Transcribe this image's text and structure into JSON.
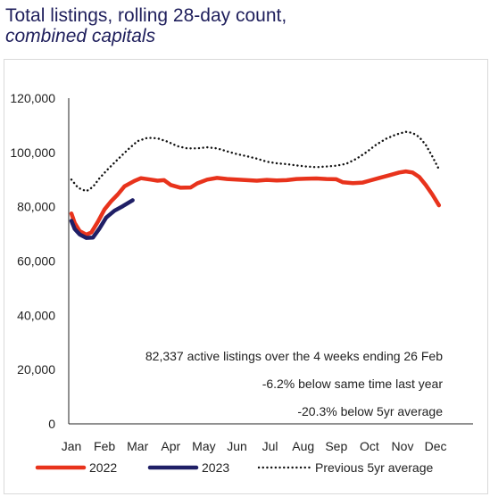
{
  "chart_data": {
    "type": "line",
    "title": "Total listings, rolling 28-day count,",
    "subtitle": "combined capitals",
    "categories": [
      "Jan",
      "Feb",
      "Mar",
      "Apr",
      "May",
      "Jun",
      "Jul",
      "Aug",
      "Sep",
      "Oct",
      "Nov",
      "Dec"
    ],
    "ylim": [
      0,
      120000
    ],
    "yticks": [
      0,
      20000,
      40000,
      60000,
      80000,
      100000,
      120000
    ],
    "ytick_labels": [
      "0",
      "20,000",
      "40,000",
      "60,000",
      "80,000",
      "100,000",
      "120,000"
    ],
    "grid": false,
    "legend_position": "bottom",
    "series": [
      {
        "name": "2022",
        "color": "#e8331c",
        "style": "solid",
        "points": [
          [
            0,
            77500
          ],
          [
            0.1,
            74000
          ],
          [
            0.25,
            71000
          ],
          [
            0.45,
            69700
          ],
          [
            0.6,
            70500
          ],
          [
            0.8,
            74500
          ],
          [
            1.0,
            79000
          ],
          [
            1.2,
            82000
          ],
          [
            1.4,
            84500
          ],
          [
            1.6,
            87500
          ],
          [
            1.9,
            89500
          ],
          [
            2.1,
            90500
          ],
          [
            2.4,
            90000
          ],
          [
            2.6,
            89600
          ],
          [
            2.8,
            89800
          ],
          [
            3.0,
            88000
          ],
          [
            3.3,
            87000
          ],
          [
            3.6,
            87100
          ],
          [
            3.8,
            88600
          ],
          [
            4.1,
            90000
          ],
          [
            4.4,
            90600
          ],
          [
            4.7,
            90200
          ],
          [
            5.0,
            90000
          ],
          [
            5.3,
            89800
          ],
          [
            5.6,
            89600
          ],
          [
            5.9,
            89900
          ],
          [
            6.2,
            89700
          ],
          [
            6.5,
            89800
          ],
          [
            6.8,
            90200
          ],
          [
            7.1,
            90300
          ],
          [
            7.4,
            90400
          ],
          [
            7.7,
            90200
          ],
          [
            8.0,
            90100
          ],
          [
            8.2,
            89000
          ],
          [
            8.5,
            88700
          ],
          [
            8.8,
            88900
          ],
          [
            9.0,
            89600
          ],
          [
            9.3,
            90600
          ],
          [
            9.6,
            91600
          ],
          [
            9.9,
            92600
          ],
          [
            10.1,
            93000
          ],
          [
            10.3,
            92600
          ],
          [
            10.5,
            91000
          ],
          [
            10.7,
            88000
          ],
          [
            10.9,
            84500
          ],
          [
            11.1,
            80500
          ]
        ]
      },
      {
        "name": "2023",
        "color": "#1f1f66",
        "style": "solid",
        "points": [
          [
            0,
            74800
          ],
          [
            0.1,
            71800
          ],
          [
            0.25,
            69800
          ],
          [
            0.45,
            68500
          ],
          [
            0.65,
            68600
          ],
          [
            0.85,
            72000
          ],
          [
            1.05,
            76000
          ],
          [
            1.3,
            78500
          ],
          [
            1.55,
            80200
          ],
          [
            1.85,
            82400
          ]
        ]
      },
      {
        "name": "Previous 5yr average",
        "color": "#111111",
        "style": "dotted",
        "points": [
          [
            0,
            90000
          ],
          [
            0.2,
            87000
          ],
          [
            0.45,
            85700
          ],
          [
            0.65,
            87300
          ],
          [
            0.85,
            90500
          ],
          [
            1.1,
            93800
          ],
          [
            1.4,
            97400
          ],
          [
            1.7,
            101000
          ],
          [
            2.0,
            104200
          ],
          [
            2.3,
            105400
          ],
          [
            2.6,
            105200
          ],
          [
            2.9,
            104000
          ],
          [
            3.2,
            102300
          ],
          [
            3.5,
            101500
          ],
          [
            3.8,
            101500
          ],
          [
            4.1,
            101900
          ],
          [
            4.4,
            101500
          ],
          [
            4.7,
            100400
          ],
          [
            5.0,
            99400
          ],
          [
            5.3,
            98600
          ],
          [
            5.6,
            97700
          ],
          [
            5.9,
            96600
          ],
          [
            6.2,
            96000
          ],
          [
            6.5,
            95700
          ],
          [
            6.8,
            95200
          ],
          [
            7.1,
            94800
          ],
          [
            7.4,
            94600
          ],
          [
            7.7,
            94800
          ],
          [
            8.0,
            95100
          ],
          [
            8.3,
            95800
          ],
          [
            8.6,
            97600
          ],
          [
            8.9,
            100000
          ],
          [
            9.2,
            102800
          ],
          [
            9.5,
            105000
          ],
          [
            9.8,
            106600
          ],
          [
            10.1,
            107600
          ],
          [
            10.3,
            107200
          ],
          [
            10.5,
            105700
          ],
          [
            10.7,
            102800
          ],
          [
            10.9,
            98500
          ],
          [
            11.1,
            93800
          ]
        ]
      }
    ],
    "annotations": [
      "82,337 active listings over the 4 weeks ending 26 Feb",
      "-6.2% below same time last year",
      "-20.3% below 5yr average"
    ]
  }
}
